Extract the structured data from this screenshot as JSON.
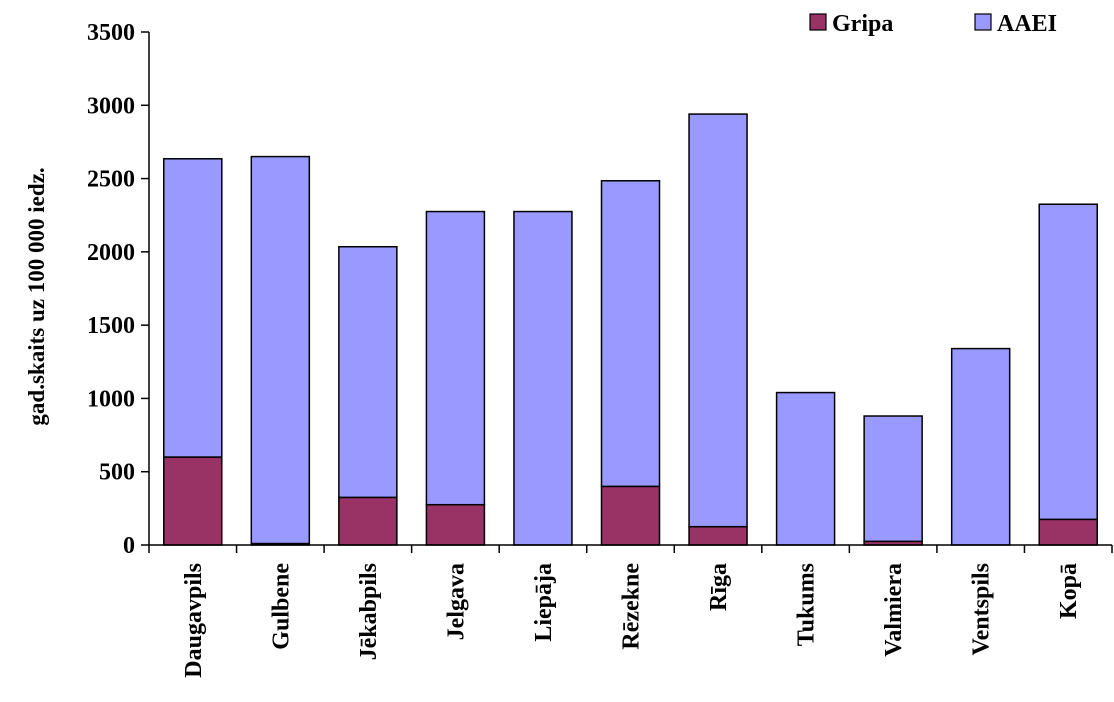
{
  "chart_data": {
    "type": "bar",
    "stacked": true,
    "ylabel": "gad.skaits uz 100 000 iedz.",
    "ylim": [
      0,
      3500
    ],
    "yticks": [
      "0",
      "500",
      "1000",
      "1500",
      "2000",
      "2500",
      "3000",
      "3500"
    ],
    "categories": [
      "Daugavpils",
      "Gulbene",
      "Jēkabpils",
      "Jelgava",
      "Liepāja",
      "Rēzekne",
      "Rīga",
      "Tukums",
      "Valmiera",
      "Ventspils",
      "Kopā"
    ],
    "series": [
      {
        "name": "Gripa",
        "color": "#993366",
        "values": [
          600,
          10,
          325,
          275,
          0,
          400,
          125,
          0,
          25,
          0,
          175
        ]
      },
      {
        "name": "AAEI",
        "color": "#9999ff",
        "values": [
          2035,
          2640,
          1710,
          2000,
          2275,
          2085,
          2815,
          1040,
          855,
          1340,
          2150
        ]
      }
    ],
    "legend": "top-right",
    "grid": false
  }
}
